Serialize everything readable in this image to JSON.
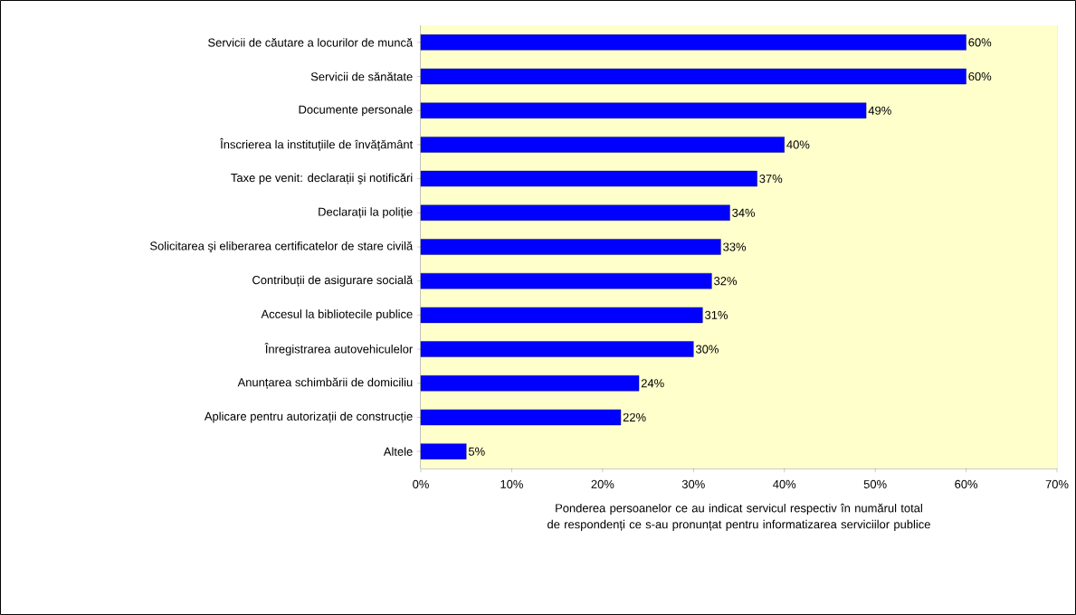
{
  "chart_data": {
    "type": "bar",
    "orientation": "horizontal",
    "categories": [
      "Servicii de căutare a locurilor de muncă",
      "Servicii de sănătate",
      "Documente personale",
      "Înscrierea la instituțiile de învățământ",
      "Taxe pe venit: declarații şi notificări",
      "Declarații la poliție",
      "Solicitarea şi eliberarea certificatelor de stare civilă",
      "Contribuții de asigurare socială",
      "Accesul la bibliotecile publice",
      "Înregistrarea autovehiculelor",
      "Anunțarea schimbării de domiciliu",
      "Aplicare pentru autorizații de construcție",
      "Altele"
    ],
    "values": [
      60,
      60,
      49,
      40,
      37,
      34,
      33,
      32,
      31,
      30,
      24,
      22,
      5
    ],
    "value_labels": [
      "60%",
      "60%",
      "49%",
      "40%",
      "37%",
      "34%",
      "33%",
      "32%",
      "31%",
      "30%",
      "24%",
      "22%",
      "5%"
    ],
    "color": "#0000ff",
    "xlim": [
      0,
      70
    ],
    "xticks": [
      {
        "value": 0,
        "label": "0%"
      },
      {
        "value": 10,
        "label": "10%"
      },
      {
        "value": 20,
        "label": "20%"
      },
      {
        "value": 30,
        "label": "30%"
      },
      {
        "value": 40,
        "label": "40%"
      },
      {
        "value": 50,
        "label": "50%"
      },
      {
        "value": 60,
        "label": "60%"
      },
      {
        "value": 70,
        "label": "70%"
      }
    ],
    "xlabel": "Ponderea persoanelor ce au indicat servicul respectiv în numărul total de respondenți ce s-au pronunțat pentru informatizarea serviciilor  publice",
    "grid": "x"
  }
}
